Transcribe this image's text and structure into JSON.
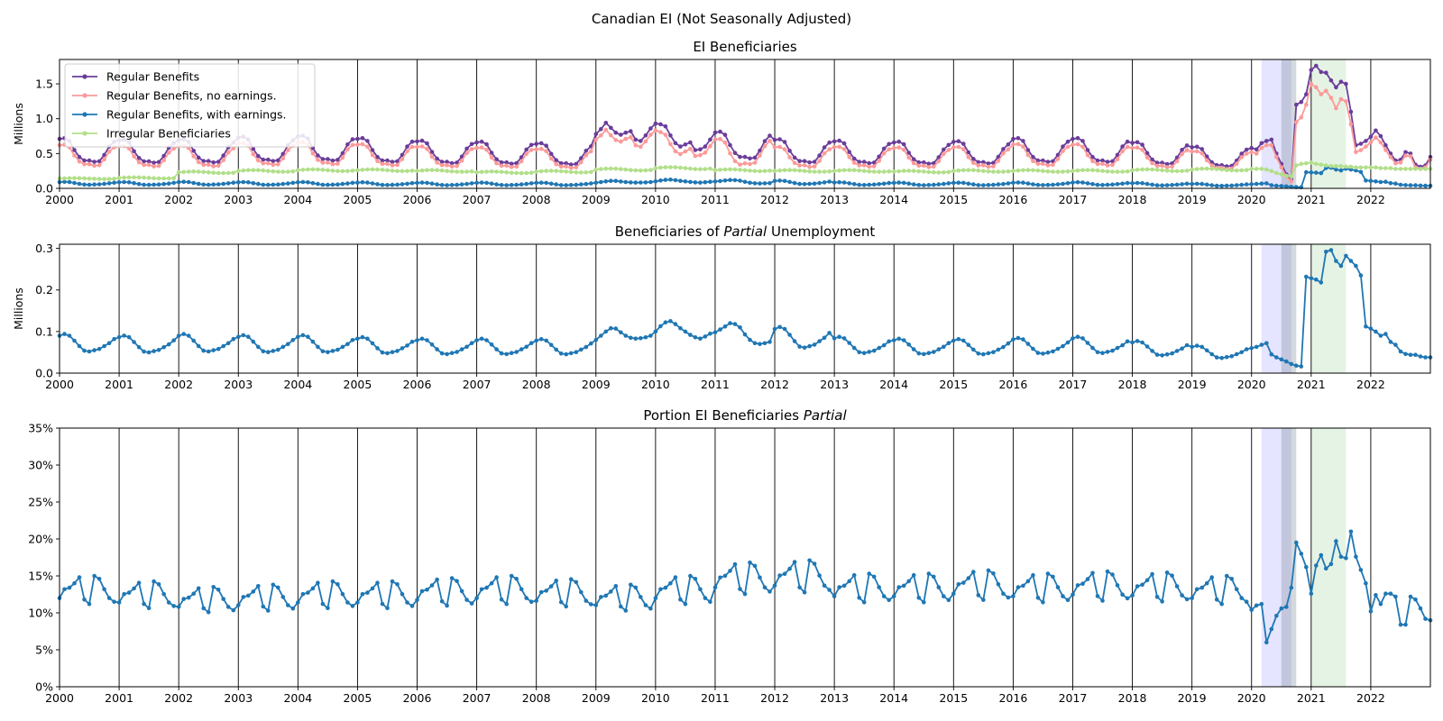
{
  "figure": {
    "suptitle": "Canadian EI (Not Seasonally Adjusted)"
  },
  "chart_data": [
    {
      "type": "line",
      "title": "EI Beneficiaries",
      "ylabel": "Millions",
      "xlabel": "",
      "xlim": [
        2000.0,
        2023.0
      ],
      "ylim": [
        0,
        1.85
      ],
      "yticks": [
        0.0,
        0.5,
        1.0,
        1.5
      ],
      "ytick_labels": [
        "0.0",
        "0.5",
        "1.0",
        "1.5"
      ],
      "xticks": [
        2000,
        2001,
        2002,
        2003,
        2004,
        2005,
        2006,
        2007,
        2008,
        2009,
        2010,
        2011,
        2012,
        2013,
        2014,
        2015,
        2016,
        2017,
        2018,
        2019,
        2020,
        2021,
        2022
      ],
      "xtick_labels": [
        "2000",
        "2001",
        "2002",
        "2003",
        "2004",
        "2005",
        "2006",
        "2007",
        "2008",
        "2009",
        "2010",
        "2011",
        "2012",
        "2013",
        "2014",
        "2015",
        "2016",
        "2017",
        "2018",
        "2019",
        "2020",
        "2021",
        "2022"
      ],
      "legend": {
        "placement": "top-left"
      },
      "vertical_gridlines": true,
      "shaded_spans": [
        {
          "start": "2020-03",
          "end": "2020-09",
          "color": "#0000ff",
          "opacity": 0.1
        },
        {
          "start": "2020-07",
          "end": "2020-10",
          "color": "#708090",
          "opacity": 0.3
        },
        {
          "start": "2021-01",
          "end": "2021-08",
          "color": "#2ca02c",
          "opacity": 0.12
        }
      ],
      "series": [
        {
          "name": "Regular Benefits",
          "color": "#6a3d9a",
          "start": "2000-01",
          "frequency": "monthly",
          "annual_pattern": [
            0.71,
            0.72,
            0.68,
            0.55,
            0.45,
            0.4,
            0.4,
            0.38,
            0.39,
            0.48,
            0.6,
            0.67
          ],
          "annual_levels": [
            1.0,
            0.97,
            0.98,
            1.03,
            1.05,
            1.0,
            0.95,
            0.93,
            0.9,
            1.3,
            1.3,
            1.13,
            0.98,
            0.95,
            0.93,
            0.94,
            1.0,
            1.0,
            0.92,
            0.83,
            0.8
          ],
          "year_points": {
            "2009": [
              0.78,
              0.85,
              0.94,
              0.87,
              0.8,
              0.77,
              0.8,
              0.82,
              0.7,
              0.68,
              0.76,
              0.86
            ],
            "2010": [
              0.93,
              0.92,
              0.89,
              0.76,
              0.65,
              0.6,
              0.63,
              0.66,
              0.55,
              0.56,
              0.6,
              0.7
            ],
            "2020": [
              0.58,
              0.56,
              0.65,
              0.68,
              0.7,
              0.5,
              0.35,
              0.2,
              0.13,
              1.2,
              1.24,
              1.35
            ],
            "2021": [
              1.7,
              1.76,
              1.67,
              1.66,
              1.55,
              1.45,
              1.53,
              1.5,
              1.1,
              0.62,
              0.64,
              0.68
            ],
            "2022": [
              0.74,
              0.83,
              0.75,
              0.62,
              0.5,
              0.4,
              0.41,
              0.52,
              0.5,
              0.34,
              0.31,
              0.33
            ]
          },
          "end_point": {
            "date": "2023-01",
            "value": 0.45
          }
        },
        {
          "name": "Regular Benefits, no earnings.",
          "color": "#fb9a99",
          "start": "2000-01",
          "frequency": "monthly",
          "derived": "Regular Benefits minus Regular Benefits, with earnings.",
          "year_points": {
            "2020": [
              0.52,
              0.5,
              0.58,
              0.62,
              0.62,
              0.45,
              0.3,
              0.17,
              0.1,
              0.95,
              1.02,
              1.2
            ],
            "2021": [
              1.5,
              1.45,
              1.35,
              1.4,
              1.3,
              1.15,
              1.28,
              1.25,
              0.92,
              0.52,
              0.55,
              0.6
            ],
            "2022": [
              0.66,
              0.73,
              0.66,
              0.55,
              0.45,
              0.36,
              0.37,
              0.47,
              0.46,
              0.3,
              0.28,
              0.3
            ]
          }
        },
        {
          "name": "Regular Benefits, with earnings.",
          "color": "#1f77b4",
          "start": "2000-01",
          "frequency": "monthly",
          "same_as_chart": 1
        },
        {
          "name": "Irregular Beneficiaries",
          "color": "#b2df8a",
          "start": "2000-01",
          "frequency": "monthly",
          "annual_levels": [
            0.14,
            0.15,
            0.23,
            0.25,
            0.26,
            0.26,
            0.25,
            0.23,
            0.24,
            0.27,
            0.29,
            0.26,
            0.25,
            0.25,
            0.24,
            0.25,
            0.25,
            0.25,
            0.26,
            0.27,
            0.28
          ],
          "year_points": {
            "2020": [
              0.28,
              0.28,
              0.28,
              0.27,
              0.25,
              0.22,
              0.2,
              0.18,
              0.17,
              0.33,
              0.35,
              0.36
            ],
            "2021": [
              0.37,
              0.35,
              0.34,
              0.33,
              0.32,
              0.32,
              0.32,
              0.31,
              0.31,
              0.3,
              0.3,
              0.3
            ],
            "2022": [
              0.3,
              0.3,
              0.29,
              0.29,
              0.29,
              0.28,
              0.28,
              0.28,
              0.28,
              0.28,
              0.28,
              0.28
            ]
          },
          "end_point": {
            "date": "2023-01",
            "value": 0.28
          }
        }
      ]
    },
    {
      "type": "line",
      "title_parts": [
        {
          "text": "Beneficiaries of ",
          "italic": false
        },
        {
          "text": "Partial",
          "italic": true
        },
        {
          "text": " Unemployment",
          "italic": false
        }
      ],
      "ylabel": "Millions",
      "xlabel": "",
      "xlim": [
        2000.0,
        2023.0
      ],
      "ylim": [
        0,
        0.31
      ],
      "yticks": [
        0.0,
        0.1,
        0.2,
        0.3
      ],
      "ytick_labels": [
        "0.0",
        "0.1",
        "0.2",
        "0.3"
      ],
      "xticks": [
        2000,
        2001,
        2002,
        2003,
        2004,
        2005,
        2006,
        2007,
        2008,
        2009,
        2010,
        2011,
        2012,
        2013,
        2014,
        2015,
        2016,
        2017,
        2018,
        2019,
        2020,
        2021,
        2022
      ],
      "xtick_labels": [
        "2000",
        "2001",
        "2002",
        "2003",
        "2004",
        "2005",
        "2006",
        "2007",
        "2008",
        "2009",
        "2010",
        "2011",
        "2012",
        "2013",
        "2014",
        "2015",
        "2016",
        "2017",
        "2018",
        "2019",
        "2020",
        "2021",
        "2022"
      ],
      "vertical_gridlines": true,
      "shaded_spans": [
        {
          "start": "2020-03",
          "end": "2020-09",
          "color": "#0000ff",
          "opacity": 0.1
        },
        {
          "start": "2020-07",
          "end": "2020-10",
          "color": "#708090",
          "opacity": 0.3
        },
        {
          "start": "2021-01",
          "end": "2021-08",
          "color": "#2ca02c",
          "opacity": 0.12
        }
      ],
      "series": [
        {
          "name": "",
          "color": "#1f77b4",
          "start": "2000-01",
          "frequency": "monthly",
          "annual_pattern": [
            0.09,
            0.094,
            0.09,
            0.078,
            0.065,
            0.054,
            0.052,
            0.055,
            0.058,
            0.065,
            0.072,
            0.082
          ],
          "annual_levels": [
            1.0,
            0.96,
            1.0,
            0.97,
            0.97,
            0.92,
            0.88,
            0.88,
            0.87,
            1.15,
            1.33,
            1.27,
            1.18,
            0.93,
            0.88,
            0.87,
            0.9,
            0.93,
            0.82,
            0.7,
            0.7
          ],
          "year_points": {
            "2009": [
              0.08,
              0.09,
              0.1,
              0.108,
              0.107,
              0.098,
              0.09,
              0.085,
              0.083,
              0.084,
              0.086,
              0.09
            ],
            "2010": [
              0.1,
              0.113,
              0.122,
              0.125,
              0.118,
              0.108,
              0.1,
              0.092,
              0.086,
              0.083,
              0.088,
              0.095
            ],
            "2011": [
              0.098,
              0.105,
              0.112,
              0.12,
              0.118,
              0.11,
              0.093,
              0.08,
              0.072,
              0.07,
              0.072,
              0.075
            ],
            "2020": [
              0.06,
              0.063,
              0.068,
              0.072,
              0.045,
              0.038,
              0.033,
              0.028,
              0.022,
              0.018,
              0.016,
              0.232
            ],
            "2021": [
              0.228,
              0.225,
              0.218,
              0.292,
              0.296,
              0.27,
              0.258,
              0.282,
              0.27,
              0.258,
              0.235,
              0.112
            ],
            "2022": [
              0.107,
              0.1,
              0.09,
              0.094,
              0.075,
              0.068,
              0.052,
              0.046,
              0.044,
              0.044,
              0.04,
              0.038
            ]
          },
          "end_point": {
            "date": "2023-01",
            "value": 0.038
          }
        }
      ]
    },
    {
      "type": "line",
      "title_parts": [
        {
          "text": "Portion EI Beneficiaries ",
          "italic": false
        },
        {
          "text": "Partial",
          "italic": true
        }
      ],
      "ylabel": "",
      "xlabel": "",
      "xlim": [
        2000.0,
        2023.0
      ],
      "ylim": [
        0,
        35
      ],
      "yticks": [
        0,
        5,
        10,
        15,
        20,
        25,
        30,
        35
      ],
      "ytick_labels": [
        "0%",
        "5%",
        "10%",
        "15%",
        "20%",
        "25%",
        "30%",
        "35%"
      ],
      "xticks": [
        2000,
        2001,
        2002,
        2003,
        2004,
        2005,
        2006,
        2007,
        2008,
        2009,
        2010,
        2011,
        2012,
        2013,
        2014,
        2015,
        2016,
        2017,
        2018,
        2019,
        2020,
        2021,
        2022
      ],
      "xtick_labels": [
        "2000",
        "2001",
        "2002",
        "2003",
        "2004",
        "2005",
        "2006",
        "2007",
        "2008",
        "2009",
        "2010",
        "2011",
        "2012",
        "2013",
        "2014",
        "2015",
        "2016",
        "2017",
        "2018",
        "2019",
        "2020",
        "2021",
        "2022"
      ],
      "vertical_gridlines": true,
      "shaded_spans": [
        {
          "start": "2020-03",
          "end": "2020-09",
          "color": "#0000ff",
          "opacity": 0.1
        },
        {
          "start": "2020-07",
          "end": "2020-10",
          "color": "#708090",
          "opacity": 0.3
        },
        {
          "start": "2021-01",
          "end": "2021-08",
          "color": "#2ca02c",
          "opacity": 0.12
        }
      ],
      "series": [
        {
          "name": "",
          "color": "#1f77b4",
          "start": "2000-01",
          "frequency": "monthly",
          "annual_pattern": [
            12.0,
            13.2,
            13.4,
            14.0,
            14.8,
            11.8,
            11.2,
            15.0,
            14.6,
            13.2,
            12.0,
            11.5
          ],
          "annual_levels": [
            1.0,
            0.95,
            0.9,
            0.92,
            0.95,
            0.95,
            0.98,
            1.0,
            0.97,
            0.92,
            1.0,
            1.12,
            1.14,
            1.02,
            1.02,
            1.05,
            1.02,
            1.04,
            1.03,
            1.0,
            0.85
          ],
          "year_points": {
            "2020": [
              10.4,
              11.0,
              11.2,
              6.0,
              7.8,
              9.6,
              10.6,
              10.8,
              13.4,
              19.5,
              18.0,
              16.2
            ],
            "2021": [
              12.6,
              16.4,
              17.8,
              16.0,
              16.6,
              19.7,
              17.6,
              17.4,
              21.0,
              17.6,
              15.8,
              14.0
            ],
            "2022": [
              10.2,
              12.4,
              11.2,
              12.6,
              12.6,
              12.2,
              8.4,
              8.4,
              12.2,
              11.8,
              10.6,
              9.2
            ]
          },
          "end_point": {
            "date": "2023-01",
            "value": 9.0
          }
        }
      ]
    }
  ]
}
